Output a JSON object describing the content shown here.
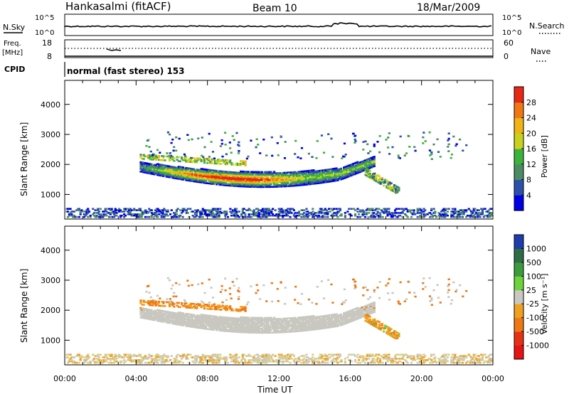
{
  "header": {
    "station": "Hankasalmi (fitACF)",
    "beam": "Beam 10",
    "date": "18/Mar/2009"
  },
  "top_panels": {
    "nsky_label": "N.Sky",
    "nsky_tick_top": "10^5",
    "nsky_tick_bottom": "10^0",
    "nsearch_label": "N.Search",
    "nsearch_tick_top": "10^5",
    "nsearch_tick_bottom": "10^0",
    "freq_label": "Freq.",
    "freq_unit": "[MHz]",
    "freq_tick_top": "18",
    "freq_tick_bottom": "8",
    "nave_label": "Nave",
    "nave_tick_top": "60",
    "nave_tick_bottom": "0",
    "cpid_label": "CPID",
    "cpid_value": "normal (fast stereo) 153"
  },
  "colors": {
    "power_scale": [
      "#0000e6",
      "#2d50a8",
      "#4a8c64",
      "#3cb43c",
      "#c8d21e",
      "#f0b414",
      "#f07814",
      "#e62814"
    ],
    "velocity_scale": [
      "#1e3caa",
      "#2d6e46",
      "#3c9b3c",
      "#6ed23c",
      "#c8c8c0",
      "#f0a01e",
      "#f07814",
      "#e63214",
      "#e61414"
    ],
    "ground_scatter": "#c8c8c0"
  },
  "chart_data": [
    {
      "type": "heatmap",
      "name": "power",
      "ylabel": "Slant Range [km]",
      "xlabel": "",
      "yticks": [
        "4000",
        "3000",
        "2000",
        "1000"
      ],
      "xlim": [
        0,
        24
      ],
      "ylim": [
        180,
        4800
      ],
      "colorbar": {
        "label": "Power [dB]",
        "ticks": [
          "28",
          "24",
          "20",
          "16",
          "12",
          "8",
          "4"
        ]
      },
      "features": [
        {
          "t0": 4.2,
          "t1": 17.3,
          "range_center": 1800,
          "peak_db": 28
        },
        {
          "t0": 17.0,
          "t1": 18.7,
          "range_center": 1200,
          "peak_db": 18
        }
      ]
    },
    {
      "type": "heatmap",
      "name": "velocity",
      "ylabel": "Slant Range [km]",
      "xlabel": "Time UT",
      "yticks": [
        "4000",
        "3000",
        "2000",
        "1000"
      ],
      "xticks": [
        "00:00",
        "04:00",
        "08:00",
        "12:00",
        "16:00",
        "20:00",
        "00:00"
      ],
      "xlim": [
        0,
        24
      ],
      "ylim": [
        180,
        4800
      ],
      "colorbar": {
        "label": "Velocity [m s⁻¹]",
        "ticks": [
          "1000",
          "500",
          "100",
          "25",
          "-25",
          "-100",
          "-500",
          "-1000"
        ]
      }
    }
  ]
}
